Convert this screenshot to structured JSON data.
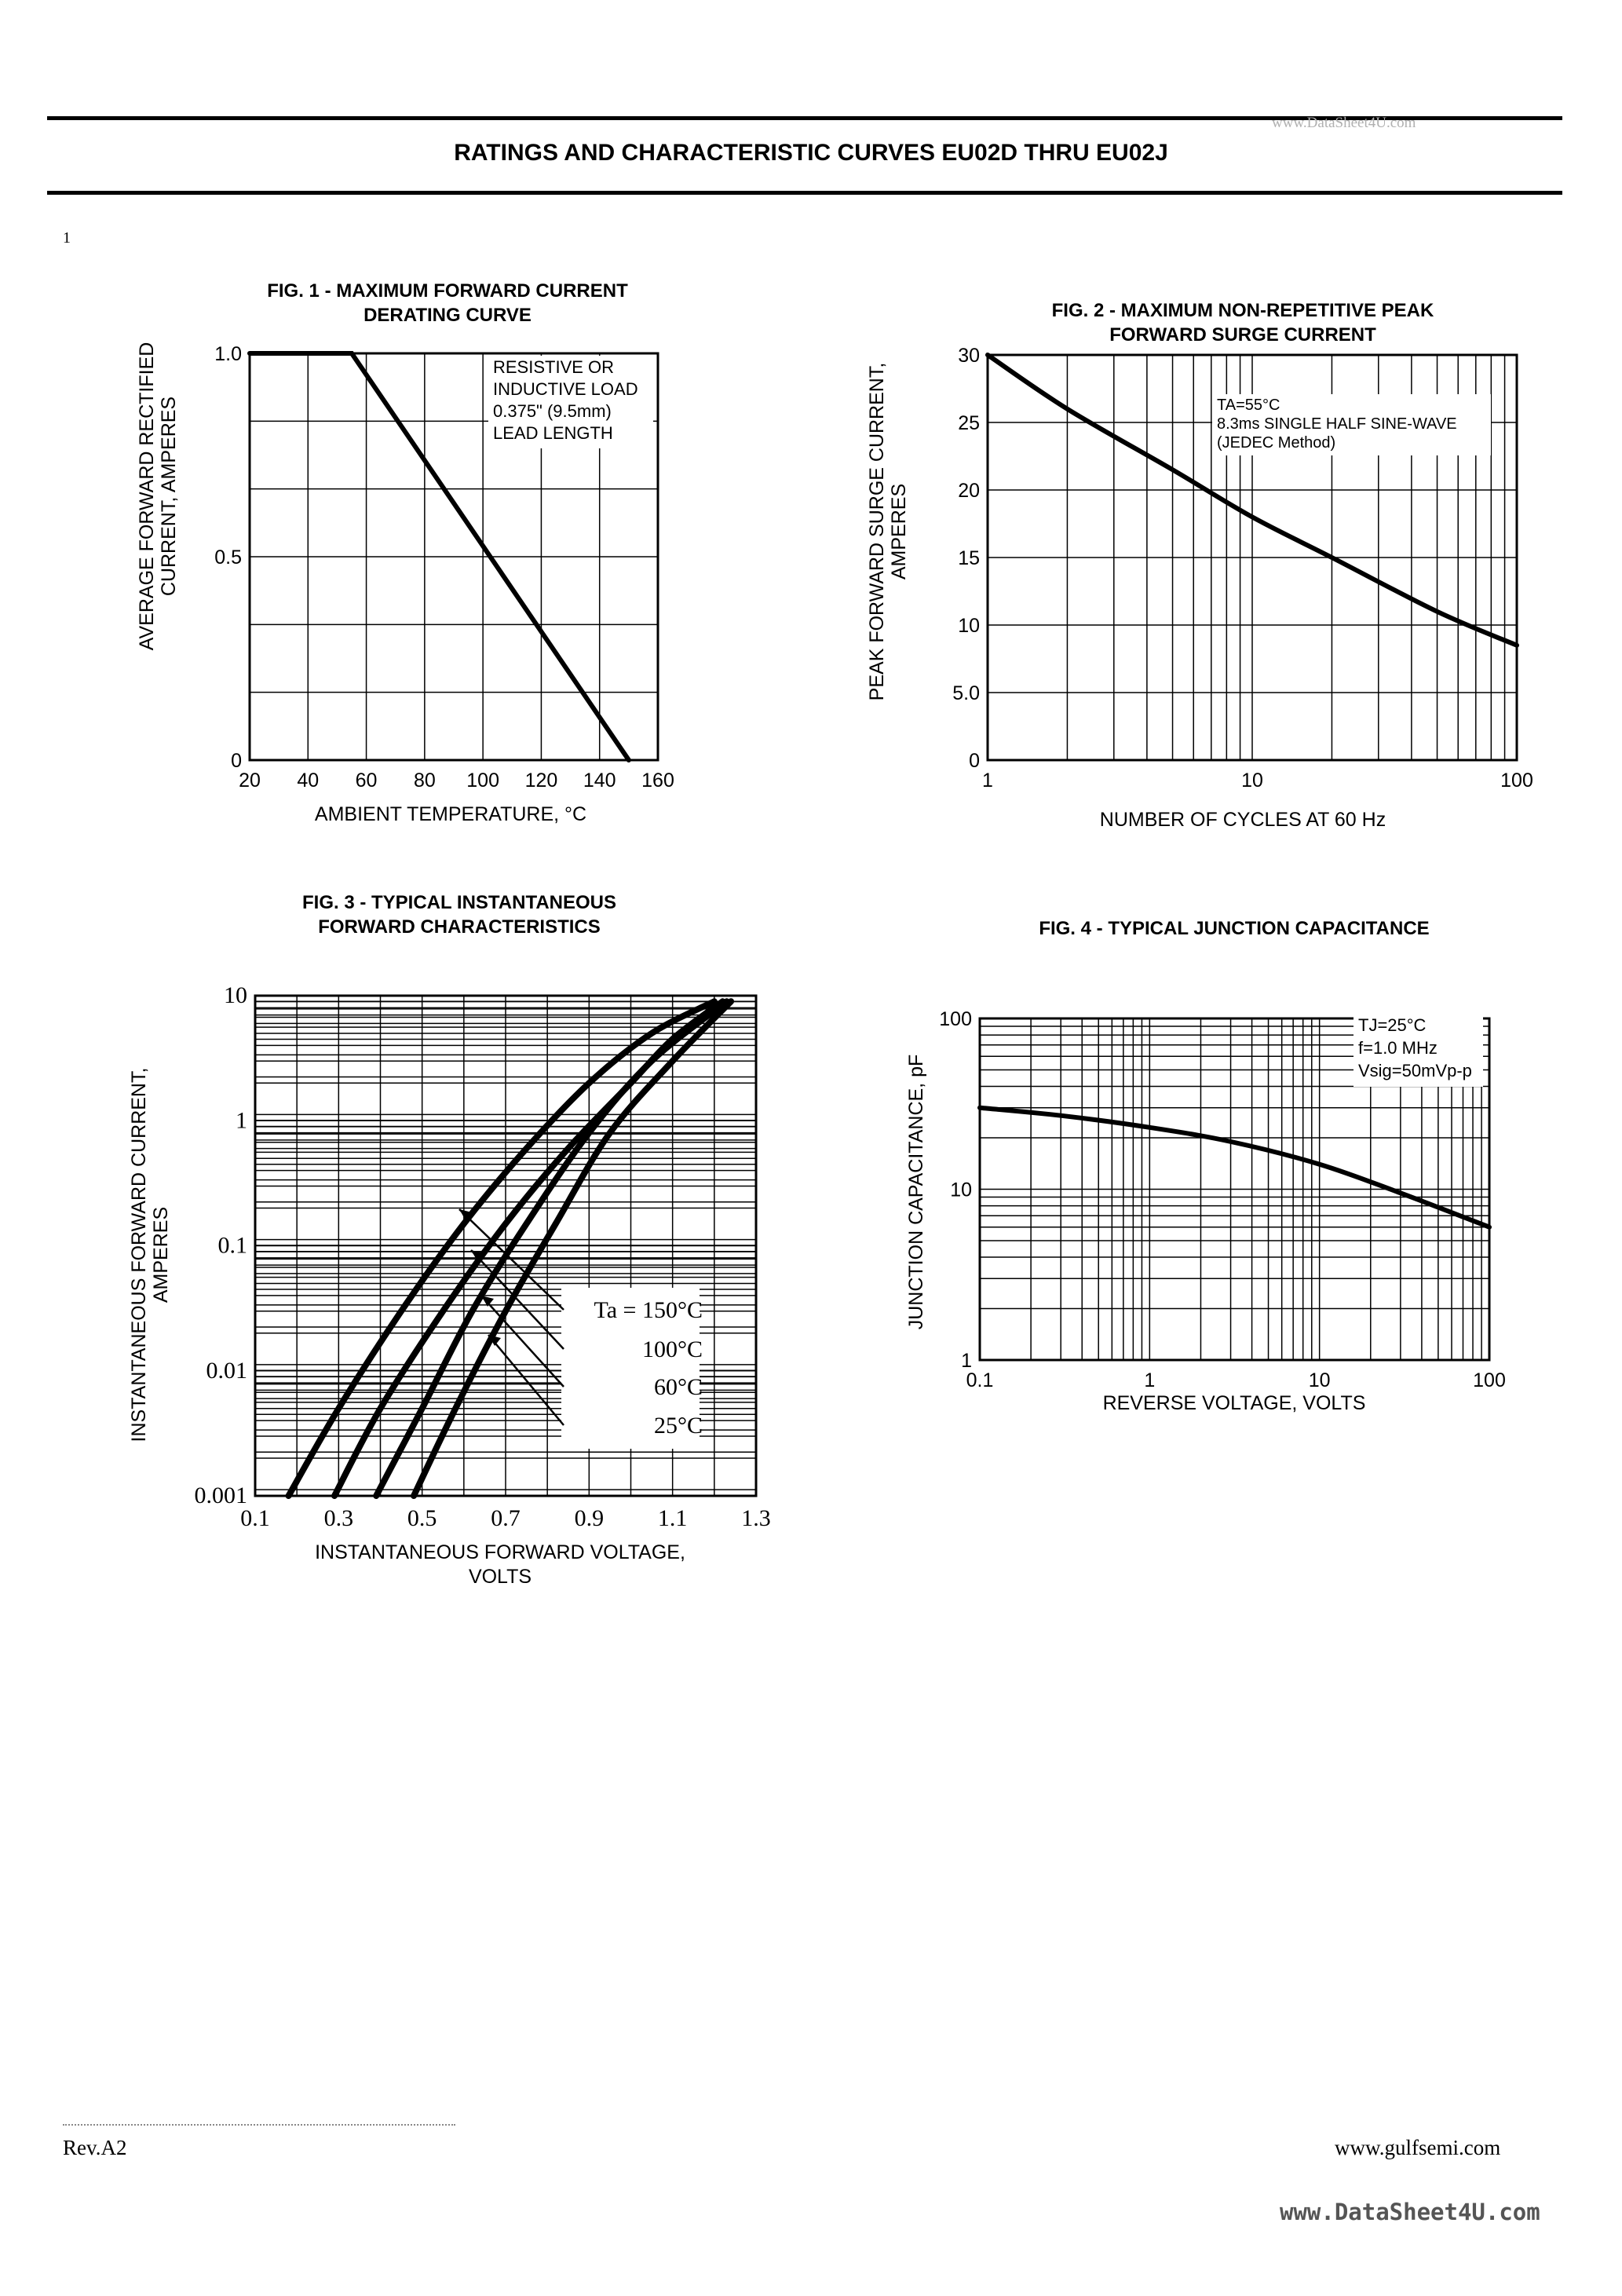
{
  "page": {
    "title": "RATINGS AND CHARACTERISTIC CURVES EU02D THRU EU02J",
    "watermark_top": "www.DataSheet4U.com",
    "page_number": "1",
    "footer_rev": "Rev.A2",
    "footer_url": "www.gulfsemi.com",
    "footer_watermark": "www.DataSheet4U.com"
  },
  "chart_data": [
    {
      "type": "line",
      "title": "FIG. 1 - MAXIMUM FORWARD CURRENT",
      "subtitle": "DERATING CURVE",
      "xlabel": "AMBIENT TEMPERATURE, °C",
      "ylabel": [
        "AVERAGE FORWARD RECTIFIED",
        "CURRENT, AMPERES"
      ],
      "xlim": [
        20,
        160
      ],
      "ylim": [
        0,
        1.0
      ],
      "x_ticks": [
        20,
        40,
        60,
        80,
        100,
        120,
        140,
        160
      ],
      "y_ticks": [
        0,
        0.5,
        1.0
      ],
      "y_tick_labels": [
        "0",
        "0.5",
        "1.0"
      ],
      "grid": true,
      "annotation": [
        "RESISTIVE OR",
        "INDUCTIVE LOAD",
        "0.375\" (9.5mm)",
        "LEAD LENGTH"
      ],
      "series": [
        {
          "x": [
            20,
            55,
            150
          ],
          "y": [
            1.0,
            1.0,
            0
          ]
        }
      ]
    },
    {
      "type": "line",
      "title": "FIG. 2 - MAXIMUM NON-REPETITIVE PEAK",
      "subtitle": "FORWARD SURGE CURRENT",
      "xlabel": "NUMBER OF CYCLES AT 60 Hz",
      "ylabel": [
        "PEAK FORWARD SURGE CURRENT,",
        "AMPERES"
      ],
      "x_scale": "log",
      "xlim": [
        1,
        100
      ],
      "ylim": [
        0,
        30
      ],
      "x_ticks": [
        1,
        10,
        100
      ],
      "y_ticks": [
        0,
        5,
        10,
        15,
        20,
        25,
        30
      ],
      "y_tick_labels": [
        "0",
        "5.0",
        "10",
        "15",
        "20",
        "25",
        "30"
      ],
      "grid": true,
      "annotation": [
        "TA=55°C",
        "8.3ms SINGLE HALF SINE-WAVE",
        "(JEDEC Method)"
      ],
      "series": [
        {
          "x": [
            1,
            2,
            5,
            10,
            20,
            50,
            100
          ],
          "y": [
            30,
            26,
            21.5,
            18,
            15,
            11,
            8.5
          ]
        }
      ]
    },
    {
      "type": "line",
      "title": "FIG. 3 - TYPICAL INSTANTANEOUS",
      "subtitle": "FORWARD CHARACTERISTICS",
      "xlabel": [
        "INSTANTANEOUS FORWARD VOLTAGE,",
        "VOLTS"
      ],
      "ylabel": [
        "INSTANTANEOUS FORWARD CURRENT,",
        "AMPERES"
      ],
      "y_scale": "log",
      "xlim": [
        0.1,
        1.3
      ],
      "ylim": [
        0.001,
        10
      ],
      "x_ticks": [
        0.1,
        0.3,
        0.5,
        0.7,
        0.9,
        1.1,
        1.3
      ],
      "y_ticks": [
        0.001,
        0.01,
        0.1,
        1,
        10
      ],
      "y_tick_labels": [
        "0.001",
        "0.01",
        "0.1",
        "1",
        "10"
      ],
      "grid": true,
      "legend_title": "Ta = 150°C",
      "series": [
        {
          "name": "Ta = 150°C",
          "x": [
            0.18,
            0.3,
            0.45,
            0.6,
            0.75,
            0.9,
            1.05,
            1.2
          ],
          "y": [
            0.001,
            0.005,
            0.03,
            0.15,
            0.6,
            2,
            5,
            9
          ]
        },
        {
          "name": "100°C",
          "x": [
            0.29,
            0.4,
            0.55,
            0.7,
            0.85,
            1.0,
            1.1,
            1.22
          ],
          "y": [
            0.001,
            0.005,
            0.03,
            0.15,
            0.6,
            2,
            4.5,
            9
          ]
        },
        {
          "name": "60°C",
          "x": [
            0.39,
            0.5,
            0.62,
            0.75,
            0.9,
            1.05,
            1.23
          ],
          "y": [
            0.001,
            0.005,
            0.03,
            0.15,
            0.8,
            3,
            9
          ]
        },
        {
          "name": "25°C",
          "x": [
            0.48,
            0.58,
            0.7,
            0.82,
            0.95,
            1.1,
            1.24
          ],
          "y": [
            0.001,
            0.005,
            0.03,
            0.15,
            0.8,
            3,
            9
          ]
        }
      ]
    },
    {
      "type": "line",
      "title": "FIG. 4 - TYPICAL JUNCTION CAPACITANCE",
      "xlabel": "REVERSE VOLTAGE, VOLTS",
      "ylabel": "JUNCTION CAPACITANCE, pF",
      "x_scale": "log",
      "y_scale": "log",
      "xlim": [
        0.1,
        100
      ],
      "ylim": [
        1,
        100
      ],
      "x_ticks": [
        0.1,
        1,
        10,
        100
      ],
      "y_ticks": [
        1,
        10,
        100
      ],
      "y_tick_labels": [
        "1",
        "10",
        "100"
      ],
      "grid": true,
      "annotation": [
        "TJ=25°C",
        "f=1.0 MHz",
        "Vsig=50mVp-p"
      ],
      "series": [
        {
          "x": [
            0.1,
            0.3,
            1,
            3,
            10,
            30,
            100
          ],
          "y": [
            30,
            27,
            23,
            19,
            14,
            9.5,
            6
          ]
        }
      ]
    }
  ]
}
